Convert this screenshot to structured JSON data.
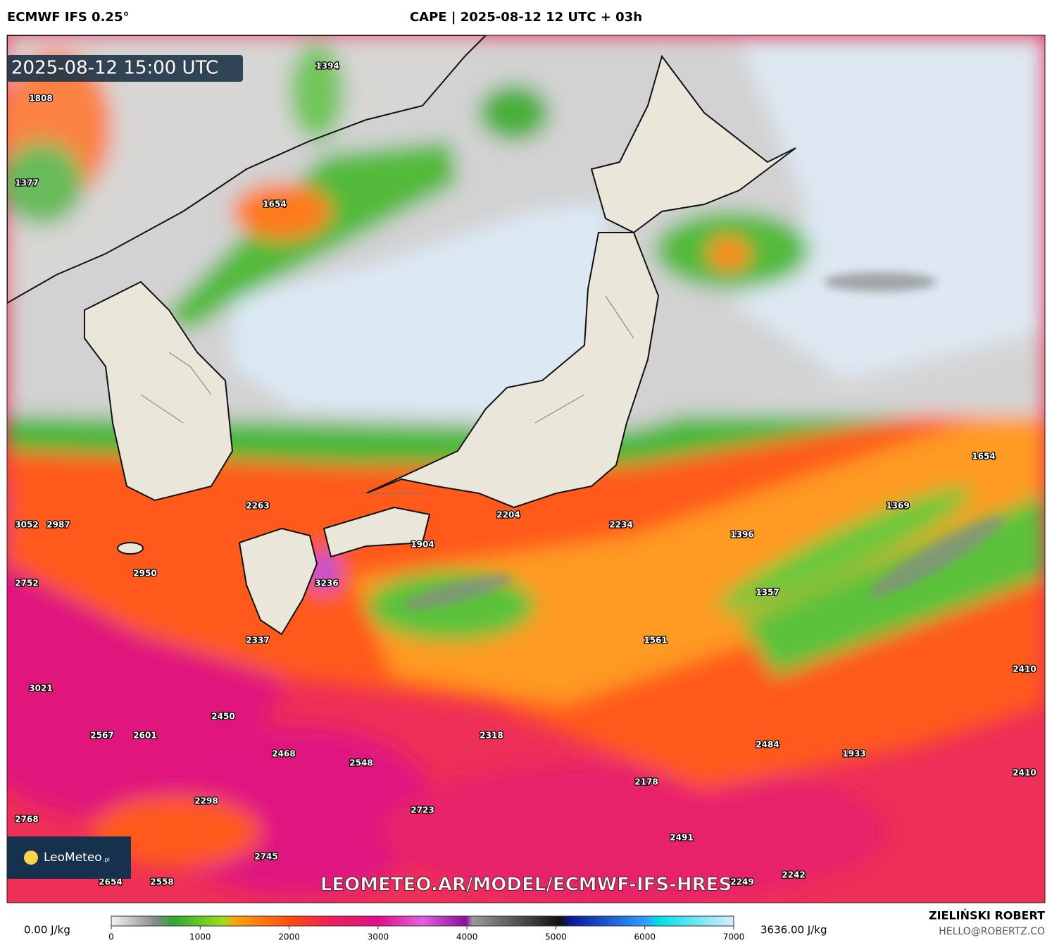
{
  "header": {
    "model": "ECMWF IFS 0.25°",
    "title": "CAPE | 2025-08-12 12 UTC + 03h",
    "valid_time": "2025-08-12 15:00 UTC"
  },
  "points": [
    1808,
    1394,
    1377,
    1654,
    1654,
    1369,
    2263,
    2204,
    2234,
    1396,
    3052,
    2987,
    1904,
    2950,
    2752,
    3236,
    1357,
    2337,
    1561,
    2410,
    3021,
    2450,
    2567,
    2601,
    2318,
    2484,
    2468,
    2548,
    1933,
    2410,
    2178,
    2298,
    2723,
    2768,
    2491,
    2745,
    2654,
    2558,
    2249,
    2242
  ],
  "watermark": "LEOMETEO.AR/MODEL/ECMWF-IFS-HRES",
  "logo": {
    "name": "LeoMeteo",
    "suffix": ".pl"
  },
  "colorbar": {
    "min_label": "0.00 J/kg",
    "max_label": "3636.00 J/kg",
    "lim": [
      0,
      7000
    ],
    "ticks": [
      0,
      1000,
      2000,
      3000,
      4000,
      5000,
      6000,
      7000
    ]
  },
  "footer": {
    "author": "ZIELIŃSKI ROBERT",
    "contact": "HELLO@ROBERTZ.CO"
  }
}
